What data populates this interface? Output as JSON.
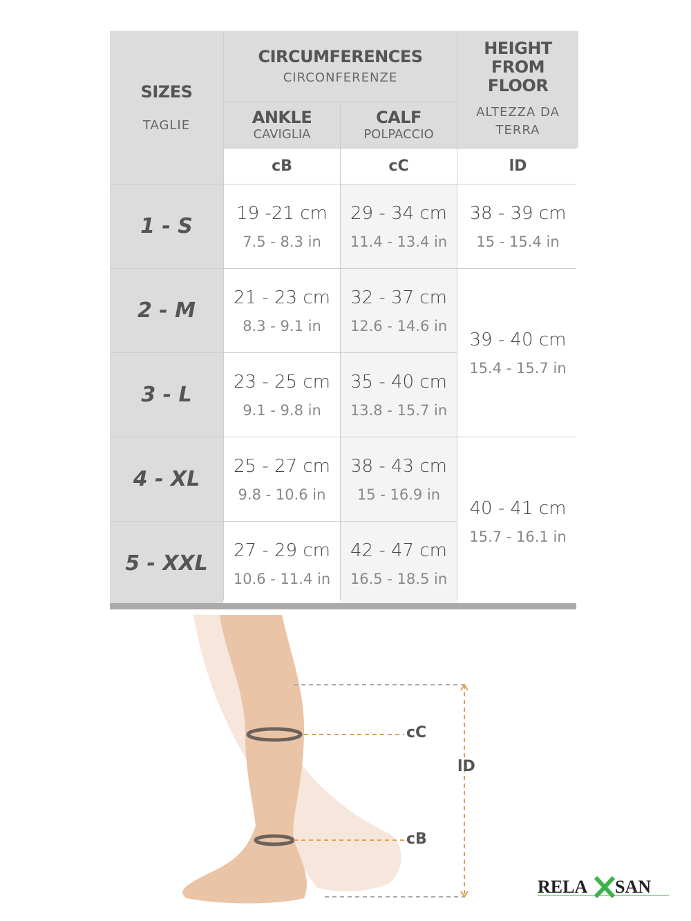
{
  "header": {
    "sizes": "SIZES",
    "sizes_it": "TAGLIE",
    "circ": "CIRCUMFERENCES",
    "circ_it": "CIRCONFERENZE",
    "height": "HEIGHT FROM FLOOR",
    "height_it": "ALTEZZA DA TERRA",
    "ankle": "ANKLE",
    "ankle_it": "CAVIGLIA",
    "calf": "CALF",
    "calf_it": "POLPACCIO",
    "codes": [
      "cB",
      "cC",
      "lD"
    ]
  },
  "rows": [
    {
      "size": "1 - S",
      "ankle_cm": "19 -21 cm",
      "ankle_in": "7.5 - 8.3 in",
      "calf_cm": "29 - 34 cm",
      "calf_in": "11.4 - 13.4 in"
    },
    {
      "size": "2 - M",
      "ankle_cm": "21 - 23 cm",
      "ankle_in": "8.3 - 9.1 in",
      "calf_cm": "32 - 37 cm",
      "calf_in": "12.6 - 14.6 in"
    },
    {
      "size": "3 - L",
      "ankle_cm": "23 - 25 cm",
      "ankle_in": "9.1 - 9.8 in",
      "calf_cm": "35 - 40 cm",
      "calf_in": "13.8 - 15.7 in"
    },
    {
      "size": "4 - XL",
      "ankle_cm": "25 - 27 cm",
      "ankle_in": "9.8 - 10.6 in",
      "calf_cm": "38 - 43 cm",
      "calf_in": "15 - 16.9 in"
    },
    {
      "size": "5 - XXL",
      "ankle_cm": "27 - 29 cm",
      "ankle_in": "10.6 - 11.4 in",
      "calf_cm": "42 - 47 cm",
      "calf_in": "16.5 - 18.5 in"
    }
  ],
  "heights": [
    {
      "cm": "38 - 39 cm",
      "in": "15 - 15.4 in"
    },
    {
      "cm": "39 - 40 cm",
      "in": "15.4 - 15.7 in"
    },
    {
      "cm": "40 - 41 cm",
      "in": "15.7 - 16.1 in"
    }
  ],
  "diagram": {
    "calf_label": "cC",
    "height_label": "lD",
    "ankle_label": "cB",
    "ring_color": "#6b625c",
    "dash_color": "#e0a050"
  },
  "logo": {
    "text": "RELAXSAN",
    "accent": "#3cb34a"
  }
}
